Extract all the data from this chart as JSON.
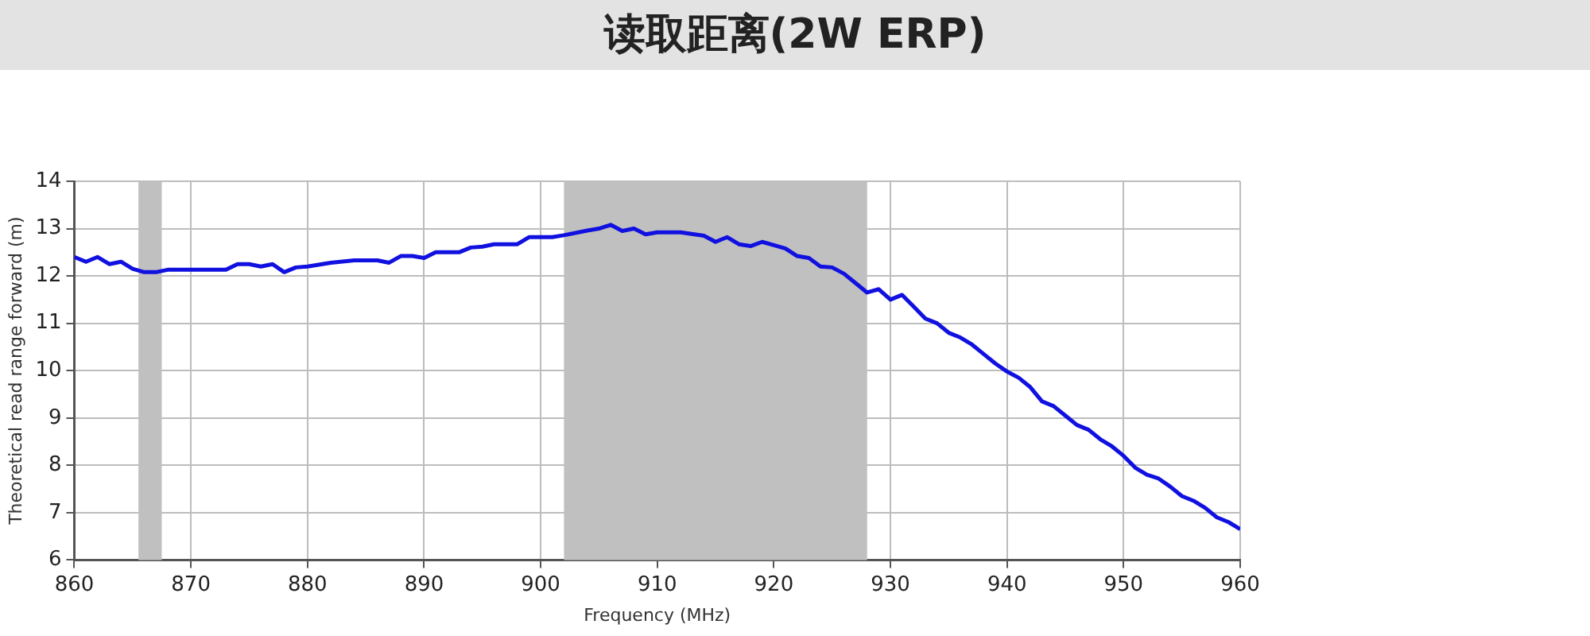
{
  "chart_data": {
    "type": "line",
    "title": "读取距离(2W ERP)",
    "xlabel": "Frequency (MHz)",
    "ylabel": "Theoretical read range forward (m)",
    "x": [
      860,
      861,
      862,
      863,
      864,
      865,
      866,
      867,
      868,
      870,
      873,
      874,
      875,
      876,
      877,
      878,
      879,
      880,
      882,
      884,
      886,
      887,
      888,
      889,
      890,
      891,
      893,
      894,
      895,
      896,
      898,
      899,
      901,
      902,
      904,
      905,
      906,
      907,
      908,
      909,
      910,
      912,
      914,
      915,
      916,
      917,
      918,
      919,
      920,
      921,
      922,
      923,
      924,
      925,
      926,
      927,
      928,
      929,
      930,
      931,
      932,
      933,
      934,
      935,
      936,
      937,
      938,
      939,
      940,
      941,
      942,
      943,
      944,
      945,
      946,
      947,
      948,
      949,
      950,
      951,
      952,
      953,
      954,
      955,
      956,
      957,
      958,
      959,
      960
    ],
    "series": [
      {
        "color": "#1010e0",
        "values": [
          12.4,
          12.3,
          12.4,
          12.25,
          12.3,
          12.15,
          12.08,
          12.08,
          12.13,
          12.13,
          12.13,
          12.25,
          12.25,
          12.2,
          12.25,
          12.08,
          12.18,
          12.2,
          12.28,
          12.33,
          12.33,
          12.28,
          12.42,
          12.42,
          12.38,
          12.5,
          12.5,
          12.6,
          12.62,
          12.67,
          12.67,
          12.82,
          12.82,
          12.86,
          12.96,
          13.0,
          13.08,
          12.95,
          13.0,
          12.88,
          12.92,
          12.92,
          12.85,
          12.72,
          12.82,
          12.67,
          12.63,
          12.72,
          12.65,
          12.58,
          12.42,
          12.38,
          12.2,
          12.18,
          12.05,
          11.85,
          11.65,
          11.72,
          11.5,
          11.6,
          11.35,
          11.1,
          11.0,
          10.8,
          10.7,
          10.55,
          10.35,
          10.15,
          9.98,
          9.85,
          9.65,
          9.35,
          9.25,
          9.05,
          8.85,
          8.75,
          8.55,
          8.4,
          8.2,
          7.95,
          7.8,
          7.72,
          7.55,
          7.35,
          7.25,
          7.1,
          6.9,
          6.8,
          6.65
        ]
      }
    ],
    "xlim": [
      860,
      960
    ],
    "xticks": [
      860,
      870,
      880,
      890,
      900,
      910,
      920,
      930,
      940,
      950,
      960
    ],
    "ylim": [
      6,
      14
    ],
    "yticks": [
      6,
      7,
      8,
      9,
      10,
      11,
      12,
      13,
      14
    ],
    "bands": [
      {
        "axis": "x",
        "from": 865.5,
        "to": 867.5,
        "color": "#c0c0c0"
      },
      {
        "axis": "x",
        "from": 902,
        "to": 928,
        "color": "#c0c0c0"
      }
    ],
    "grid": true,
    "legend": false,
    "marker": "none",
    "line_style": "solid"
  }
}
